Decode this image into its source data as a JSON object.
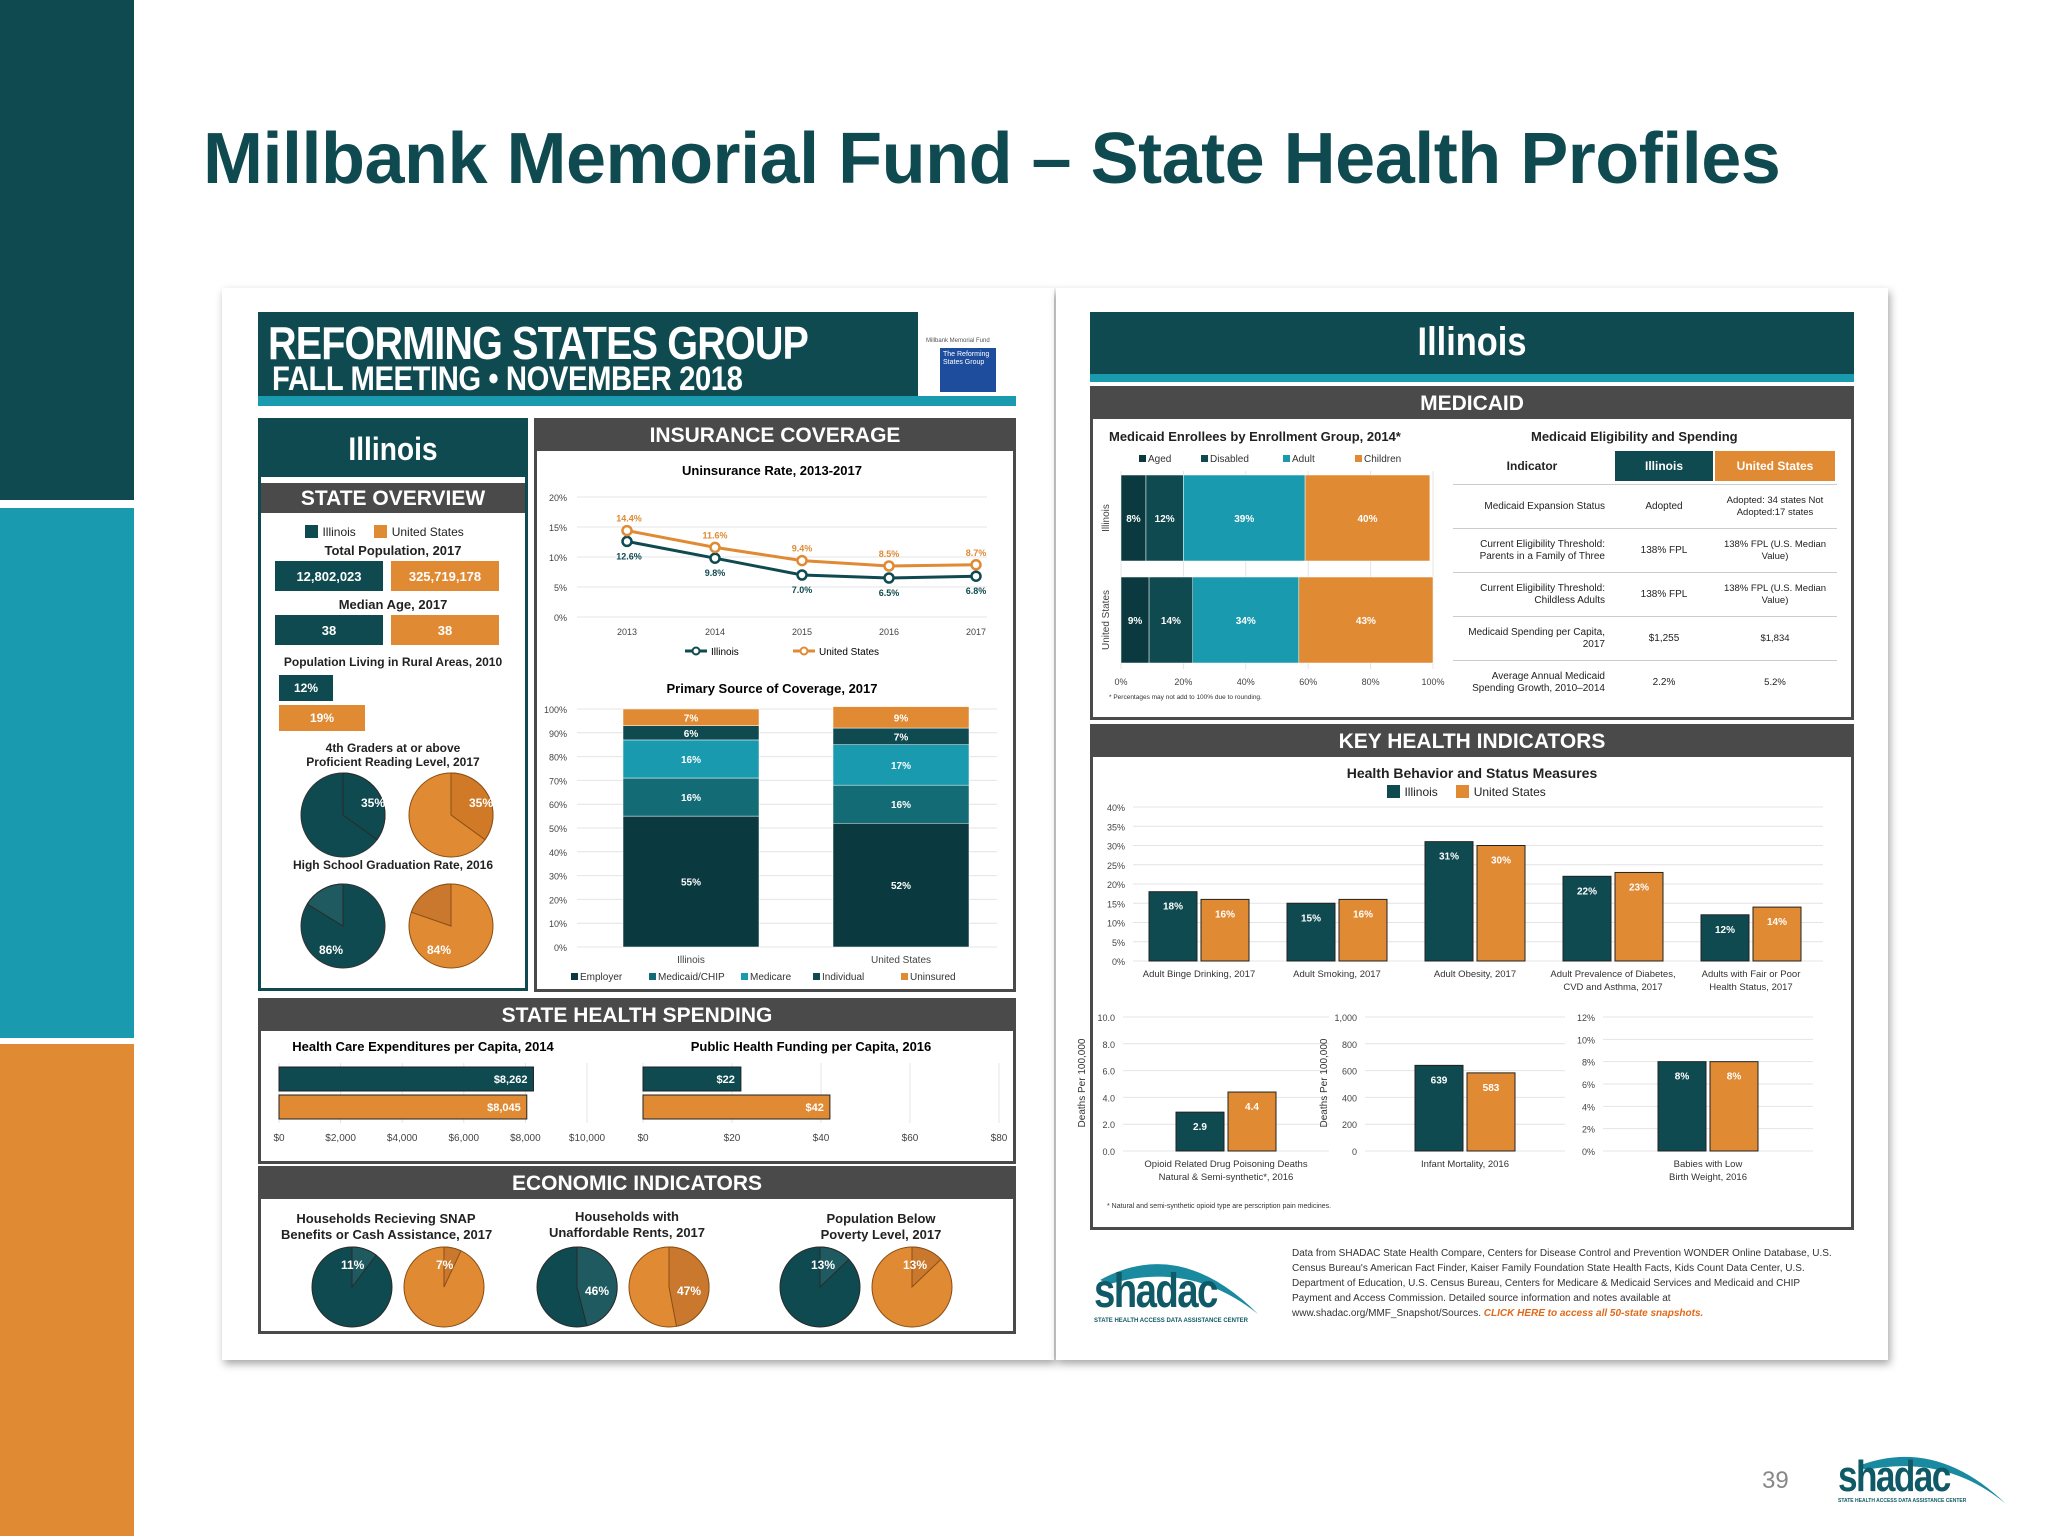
{
  "slide": {
    "title": "Millbank Memorial Fund – State Health Profiles",
    "page_number": "39",
    "logo_text": "shadac",
    "logo_sub": "STATE HEALTH ACCESS DATA ASSISTANCE CENTER"
  },
  "banner": {
    "line1": "REFORMING STATES GROUP",
    "line2": "FALL MEETING • NOVEMBER 2018",
    "badge_title": "Millbank Memorial Fund",
    "badge_text": "The Reforming States Group"
  },
  "state": {
    "name": "Illinois",
    "header": "Illinois"
  },
  "legend": {
    "illinois": "Illinois",
    "us": "United States"
  },
  "colors": {
    "teal": "#0f4a50",
    "orange": "#e08a34",
    "mid_teal": "#1a9aae",
    "dark_teal": "#0a3a3f"
  },
  "overview": {
    "header": "STATE OVERVIEW",
    "total_pop_label": "Total Population, 2017",
    "total_pop_il": "12,802,023",
    "total_pop_us": "325,719,178",
    "median_age_label": "Median Age, 2017",
    "median_age_il": "38",
    "median_age_us": "38",
    "rural_label": "Population Living in Rural Areas, 2010",
    "rural_il": "12%",
    "rural_us": "19%",
    "reading_label1": "4th Graders at or above",
    "reading_label2": "Proficient Reading Level, 2017",
    "reading_il": "35%",
    "reading_us": "35%",
    "grad_label": "High School Graduation Rate, 2016",
    "grad_il": "86%",
    "grad_us": "84%"
  },
  "insurance": {
    "header": "INSURANCE COVERAGE",
    "uninsured_title": "Uninsurance Rate, 2013-2017",
    "source_title": "Primary Source of Coverage, 2017"
  },
  "medicaid": {
    "header": "MEDICAID",
    "enroll_title": "Medicaid Enrollees by Enrollment Group, 2014*",
    "enroll_note": "* Percentages may not add to 100% due to rounding.",
    "elig_title": "Medicaid Eligibility and Spending",
    "table_headers": [
      "Indicator",
      "Illinois",
      "United States"
    ],
    "rows": [
      {
        "indicator": "Medicaid Expansion Status",
        "il": "Adopted",
        "us": "Adopted: 34 states Not Adopted:17 states"
      },
      {
        "indicator": "Current Eligibility Threshold: Parents in a Family of Three",
        "il": "138% FPL",
        "us": "138% FPL (U.S. Median Value)"
      },
      {
        "indicator": "Current Eligibility Threshold: Childless Adults",
        "il": "138% FPL",
        "us": "138% FPL (U.S. Median Value)"
      },
      {
        "indicator": "Medicaid Spending per Capita, 2017",
        "il": "$1,255",
        "us": "$1,834"
      },
      {
        "indicator": "Average Annual Medicaid Spending Growth, 2010–2014",
        "il": "2.2%",
        "us": "5.2%"
      }
    ]
  },
  "key_health": {
    "header": "KEY HEALTH INDICATORS",
    "title": "Health Behavior and Status Measures",
    "footnote": "* Natural and semi-synthetic opioid type are perscription pain medicines."
  },
  "spending": {
    "header": "STATE HEALTH SPENDING",
    "hce_title": "Health Care Expenditures per Capita, 2014",
    "phf_title": "Public Health Funding per Capita, 2016"
  },
  "economic": {
    "header": "ECONOMIC INDICATORS",
    "snap_label1": "Households Recieving SNAP",
    "snap_label2": "Benefits or Cash Assistance, 2017",
    "snap_il": "11%",
    "snap_us": "7%",
    "rent_label1": "Households with",
    "rent_label2": "Unaffordable Rents, 2017",
    "rent_il": "46%",
    "rent_us": "47%",
    "pov_label1": "Population Below",
    "pov_label2": "Poverty Level, 2017",
    "pov_il": "13%",
    "pov_us": "13%"
  },
  "sources": {
    "text": "Data from SHADAC State Health Compare, Centers for Disease Control and Prevention WONDER Online Database, U.S. Census Bureau's American Fact Finder, Kaiser Family Foundation State Health Facts, Kids Count Data Center, U.S. Department of Education, U.S. Census Bureau, Centers for Medicare & Medicaid Services and Medicaid and CHIP Payment and Access Commission. Detailed source information and notes available at www.shadac.org/MMF_Snapshot/Sources.",
    "cta": "CLICK HERE to access all 50-state snapshots.",
    "logo": "shadac",
    "logo_sub": "STATE HEALTH ACCESS DATA ASSISTANCE CENTER"
  },
  "chart_data": [
    {
      "id": "uninsurance",
      "type": "line",
      "title": "Uninsurance Rate, 2013-2017",
      "x": [
        "2013",
        "2014",
        "2015",
        "2016",
        "2017"
      ],
      "ylim": [
        0,
        20
      ],
      "yticks": [
        "0%",
        "5%",
        "10%",
        "15%",
        "20%"
      ],
      "series": [
        {
          "name": "Illinois",
          "values": [
            12.6,
            9.8,
            7.0,
            6.5,
            6.8
          ],
          "labels": [
            "12.6%",
            "9.8%",
            "7.0%",
            "6.5%",
            "6.8%"
          ]
        },
        {
          "name": "United States",
          "values": [
            14.4,
            11.6,
            9.4,
            8.5,
            8.7
          ],
          "labels": [
            "14.4%",
            "11.6%",
            "9.4%",
            "8.5%",
            "8.7%"
          ]
        }
      ]
    },
    {
      "id": "coverage",
      "type": "bar",
      "stacked": true,
      "title": "Primary Source of Coverage, 2017",
      "categories": [
        "Illinois",
        "United States"
      ],
      "ylim": [
        0,
        100
      ],
      "yticks": [
        "0%",
        "10%",
        "20%",
        "30%",
        "40%",
        "50%",
        "60%",
        "70%",
        "80%",
        "90%",
        "100%"
      ],
      "series": [
        {
          "name": "Employer",
          "values": [
            55,
            52
          ]
        },
        {
          "name": "Medicaid/CHIP",
          "values": [
            16,
            16
          ]
        },
        {
          "name": "Medicare",
          "values": [
            16,
            17
          ]
        },
        {
          "name": "Individual",
          "values": [
            6,
            7
          ]
        },
        {
          "name": "Uninsured",
          "values": [
            7,
            9
          ]
        }
      ]
    },
    {
      "id": "enrollees",
      "type": "bar",
      "stacked": true,
      "orientation": "horizontal",
      "title": "Medicaid Enrollees by Enrollment Group, 2014*",
      "categories": [
        "Illinois",
        "United States"
      ],
      "xticks": [
        "0%",
        "20%",
        "40%",
        "60%",
        "80%",
        "100%"
      ],
      "series": [
        {
          "name": "Aged",
          "values": [
            8,
            9
          ]
        },
        {
          "name": "Disabled",
          "values": [
            12,
            14
          ]
        },
        {
          "name": "Adult",
          "values": [
            39,
            34
          ]
        },
        {
          "name": "Children",
          "values": [
            40,
            43
          ]
        }
      ]
    },
    {
      "id": "behavior",
      "type": "bar",
      "title": "Health Behavior and Status Measures",
      "ylim": [
        0,
        40
      ],
      "yticks": [
        "0%",
        "5%",
        "10%",
        "15%",
        "20%",
        "25%",
        "30%",
        "35%",
        "40%"
      ],
      "categories": [
        [
          "Adult Binge Drinking, 2017"
        ],
        [
          "Adult Smoking, 2017"
        ],
        [
          "Adult Obesity, 2017"
        ],
        [
          "Adult Prevalence of Diabetes,",
          "CVD and Asthma, 2017"
        ],
        [
          "Adults with Fair or Poor",
          "Health Status, 2017"
        ]
      ],
      "series": [
        {
          "name": "Illinois",
          "values": [
            18,
            15,
            31,
            22,
            12
          ]
        },
        {
          "name": "United States",
          "values": [
            16,
            16,
            30,
            23,
            14
          ]
        }
      ]
    },
    {
      "id": "opioid",
      "type": "bar",
      "ylabel": "Deaths Per 100,000",
      "ylim": [
        0,
        10
      ],
      "yticks": [
        "0.0",
        "2.0",
        "4.0",
        "6.0",
        "8.0",
        "10.0"
      ],
      "categories": [
        [
          "Opioid Related Drug Poisoning Deaths",
          "Natural & Semi-synthetic*, 2016"
        ]
      ],
      "series": [
        {
          "name": "Illinois",
          "values": [
            2.9
          ]
        },
        {
          "name": "United States",
          "values": [
            4.4
          ]
        }
      ]
    },
    {
      "id": "infant",
      "type": "bar",
      "ylabel": "Deaths Per 100,000",
      "ylim": [
        0,
        1000
      ],
      "yticks": [
        "0",
        "200",
        "400",
        "600",
        "800",
        "1,000"
      ],
      "categories": [
        [
          "Infant Mortality, 2016"
        ]
      ],
      "series": [
        {
          "name": "Illinois",
          "values": [
            639
          ]
        },
        {
          "name": "United States",
          "values": [
            583
          ]
        }
      ]
    },
    {
      "id": "lowbirth",
      "type": "bar",
      "ylim": [
        0,
        12
      ],
      "yticks": [
        "0%",
        "2%",
        "4%",
        "6%",
        "8%",
        "10%",
        "12%"
      ],
      "categories": [
        [
          "Babies with Low",
          "Birth Weight, 2016"
        ]
      ],
      "series": [
        {
          "name": "Illinois",
          "values": [
            8
          ]
        },
        {
          "name": "United States",
          "values": [
            8
          ]
        }
      ]
    },
    {
      "id": "hce",
      "type": "bar",
      "orientation": "horizontal",
      "title": "Health Care Expenditures per Capita, 2014",
      "xlim": [
        0,
        10000
      ],
      "xticks": [
        "$0",
        "$2,000",
        "$4,000",
        "$6,000",
        "$8,000",
        "$10,000"
      ],
      "series": [
        {
          "name": "Illinois",
          "values": [
            8262
          ],
          "label": "$8,262"
        },
        {
          "name": "United States",
          "values": [
            8045
          ],
          "label": "$8,045"
        }
      ]
    },
    {
      "id": "phf",
      "type": "bar",
      "orientation": "horizontal",
      "title": "Public Health Funding per Capita, 2016",
      "xlim": [
        0,
        80
      ],
      "xticks": [
        "$0",
        "$20",
        "$40",
        "$60",
        "$80"
      ],
      "series": [
        {
          "name": "Illinois",
          "values": [
            22
          ],
          "label": "$22"
        },
        {
          "name": "United States",
          "values": [
            42
          ],
          "label": "$42"
        }
      ]
    }
  ]
}
